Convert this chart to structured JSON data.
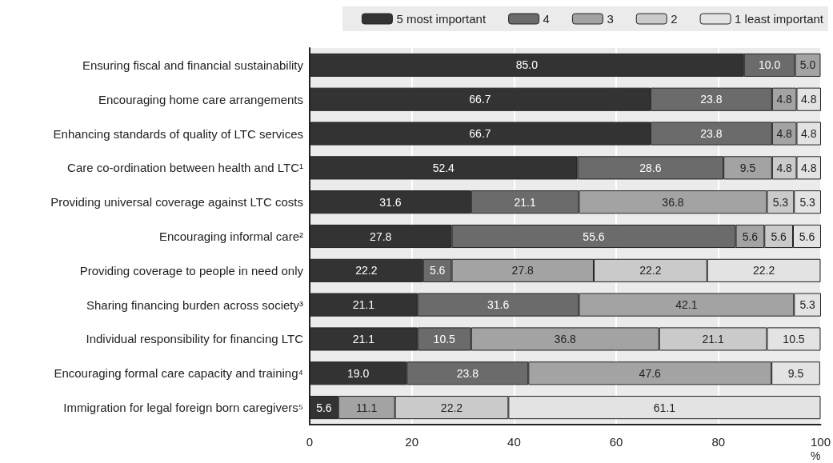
{
  "chart_data": {
    "type": "bar",
    "orientation": "horizontal",
    "stacked": true,
    "xlabel": "%",
    "categories": [
      "Ensuring fiscal and financial sustainability",
      "Encouraging home care arrangements",
      "Enhancing standards of quality of LTC services",
      "Care co-ordination between health and LTC¹",
      "Providing universal coverage against LTC costs",
      "Encouraging informal care²",
      "Providing coverage to people in need only",
      "Sharing financing burden across society³",
      "Individual responsibility for financing LTC",
      "Encouraging formal care capacity and training⁴",
      "Immigration for legal foreign born caregivers⁵"
    ],
    "series": [
      {
        "name": "5 most important",
        "color": "#333333",
        "values": [
          85,
          66.7,
          66.7,
          52.4,
          31.6,
          27.8,
          22.2,
          21.1,
          21.1,
          19,
          5.6
        ],
        "value_labels": [
          "85.0",
          "66.7",
          "66.7",
          "52.4",
          "31.6",
          "27.8",
          "22.2",
          "21.1",
          "21.1",
          "19.0",
          "5.6"
        ]
      },
      {
        "name": "4",
        "color": "#6b6b6b",
        "values": [
          10,
          23.8,
          23.8,
          28.6,
          21.1,
          55.6,
          5.6,
          31.6,
          10.5,
          23.8,
          null
        ],
        "value_labels": [
          "10.0",
          "23.8",
          "23.8",
          "28.6",
          "21.1",
          "55.6",
          "5.6",
          "31.6",
          "10.5",
          "23.8",
          null
        ]
      },
      {
        "name": "3",
        "color": "#a3a3a3",
        "values": [
          5,
          4.8,
          4.8,
          9.5,
          36.8,
          5.6,
          27.8,
          42.1,
          36.8,
          47.6,
          11.1
        ],
        "value_labels": [
          "5.0",
          "4.8",
          "4.8",
          "9.5",
          "36.8",
          "5.6",
          "27.8",
          "42.1",
          "36.8",
          "47.6",
          "11.1"
        ]
      },
      {
        "name": "2",
        "color": "#cacaca",
        "values": [
          null,
          null,
          null,
          4.8,
          5.3,
          5.6,
          22.2,
          null,
          21.1,
          null,
          22.2
        ],
        "value_labels": [
          null,
          null,
          null,
          "4.8",
          "5.3",
          "5.6",
          "22.2",
          null,
          "21.1",
          null,
          "22.2"
        ]
      },
      {
        "name": "1 least important",
        "color": "#e3e3e3",
        "values": [
          null,
          4.8,
          4.8,
          4.8,
          5.3,
          5.6,
          22.2,
          5.3,
          10.5,
          9.5,
          61.1
        ],
        "value_labels": [
          null,
          "4.8",
          "4.8",
          "4.8",
          "5.3",
          "5.6",
          "22.2",
          "5.3",
          "10.5",
          "9.5",
          "61.1"
        ]
      }
    ],
    "xlim": [
      0,
      100
    ],
    "xticks": [
      0,
      20,
      40,
      60,
      80,
      100
    ],
    "grid": "x",
    "legend": "top"
  }
}
